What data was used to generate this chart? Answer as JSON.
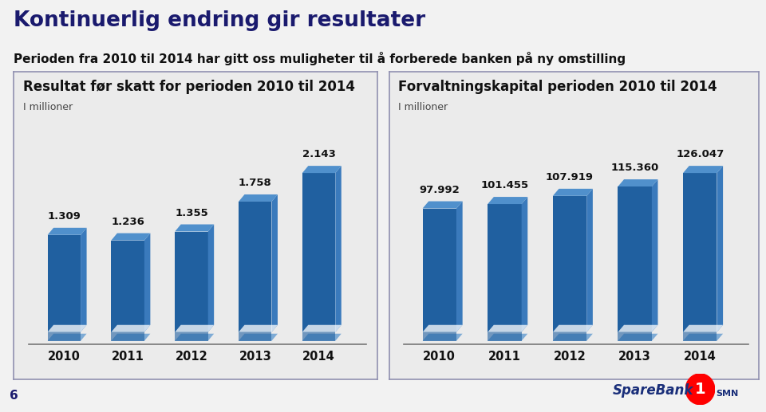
{
  "title": "Kontinuerlig endring gir resultater",
  "subtitle": "Perioden fra 2010 til 2014 har gitt oss muligheter til å forberede banken på ny omstilling",
  "left_chart": {
    "title": "Resultat før skatt for perioden 2010 til 2014",
    "subtitle": "I millioner",
    "categories": [
      "2010",
      "2011",
      "2012",
      "2013",
      "2014"
    ],
    "values": [
      1.309,
      1.236,
      1.355,
      1.758,
      2.143
    ],
    "labels": [
      "1.309",
      "1.236",
      "1.355",
      "1.758",
      "2.143"
    ]
  },
  "right_chart": {
    "title": "Forvaltningskapital perioden 2010 til 2014",
    "subtitle": "I millioner",
    "categories": [
      "2010",
      "2011",
      "2012",
      "2013",
      "2014"
    ],
    "values": [
      97.992,
      101.455,
      107.919,
      115.36,
      126.047
    ],
    "labels": [
      "97.992",
      "101.455",
      "107.919",
      "115.360",
      "126.047"
    ]
  },
  "bar_color": "#2060a0",
  "background_color": "#f2f2f2",
  "panel_background": "#ebebeb",
  "panel_border_color": "#9090b0",
  "title_color": "#1a1a6e",
  "subtitle_color": "#111111",
  "axis_label_color": "#444444",
  "year_label_color": "#111111",
  "value_label_color": "#111111",
  "footer_number": "6",
  "title_fontsize": 19,
  "subtitle_fontsize": 11,
  "chart_title_fontsize": 12,
  "chart_subtitle_fontsize": 9,
  "bar_label_fontsize": 9.5,
  "year_label_fontsize": 10.5,
  "shadow_color": "#c8d8e8",
  "side_color": "#3a7abc",
  "top_color": "#5090cc"
}
